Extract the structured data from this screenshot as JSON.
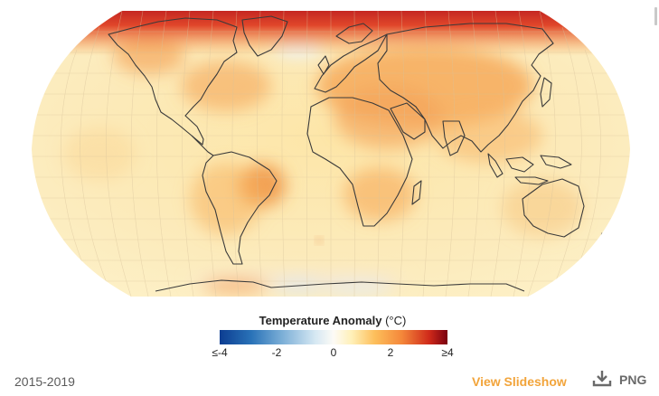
{
  "map": {
    "legend": {
      "title_strong": "Temperature Anomaly",
      "title_unit": " (°C)",
      "ticks": [
        "≤-4",
        "-2",
        "0",
        "2",
        "≥4"
      ]
    }
  },
  "footer": {
    "date_range": "2015-2019",
    "slideshow_label": "View Slideshow",
    "png_label": "PNG"
  },
  "colors": {
    "link_orange": "#f2a43a",
    "date_gray": "#5a5a5a",
    "png_gray": "#6a6a6a"
  },
  "icons": {
    "download": "download-icon"
  }
}
